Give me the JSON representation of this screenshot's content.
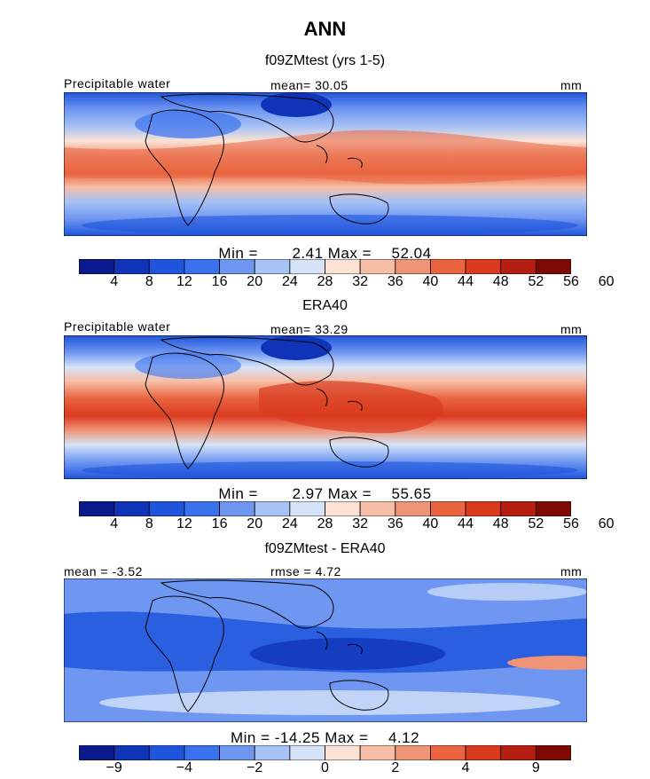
{
  "title": "ANN",
  "panels": [
    {
      "title": "f09ZMtest (yrs 1-5)",
      "left_label": "Precipitable water",
      "center_label": "mean=  30.05",
      "right_label": "mm",
      "min_label": "Min =",
      "min_value": "2.41",
      "max_label": "Max =",
      "max_value": "52.04",
      "colorbar": {
        "colors": [
          "#0a1a8c",
          "#0f34b8",
          "#1f55dc",
          "#3a72ee",
          "#6f97f2",
          "#a7c2f5",
          "#d6e3f8",
          "#fbe2d4",
          "#f6bea6",
          "#f09477",
          "#e9643f",
          "#da3b1f",
          "#b51e10",
          "#7f0a05"
        ],
        "ticks": [
          "4",
          "8",
          "12",
          "16",
          "20",
          "24",
          "28",
          "32",
          "36",
          "40",
          "44",
          "48",
          "52",
          "56",
          "60"
        ]
      }
    },
    {
      "title": "ERA40",
      "left_label": "Precipitable water",
      "center_label": "mean=  33.29",
      "right_label": "mm",
      "min_label": "Min =",
      "min_value": "2.97",
      "max_label": "Max =",
      "max_value": "55.65",
      "colorbar": {
        "colors": [
          "#0a1a8c",
          "#0f34b8",
          "#1f55dc",
          "#3a72ee",
          "#6f97f2",
          "#a7c2f5",
          "#d6e3f8",
          "#fbe2d4",
          "#f6bea6",
          "#f09477",
          "#e9643f",
          "#da3b1f",
          "#b51e10",
          "#7f0a05"
        ],
        "ticks": [
          "4",
          "8",
          "12",
          "16",
          "20",
          "24",
          "28",
          "32",
          "36",
          "40",
          "44",
          "48",
          "52",
          "56",
          "60"
        ]
      }
    },
    {
      "title": "f09ZMtest - ERA40",
      "left_label": "mean =  -3.52",
      "center_label": "rmse =  4.72",
      "right_label": "mm",
      "min_label": "Min =",
      "min_value": "-14.25",
      "max_label": "Max =",
      "max_value": "4.12",
      "colorbar": {
        "colors": [
          "#0a1a8c",
          "#0f34b8",
          "#1f55dc",
          "#3a72ee",
          "#6f97f2",
          "#a7c2f5",
          "#d6e3f8",
          "#fbe2d4",
          "#f6bea6",
          "#f09477",
          "#e9643f",
          "#da3b1f",
          "#b51e10",
          "#7f0a05"
        ],
        "ticks": [
          "-9",
          "",
          "-4",
          "",
          "-2",
          "",
          "0",
          "",
          "2",
          "",
          "4",
          "",
          "9",
          ""
        ]
      }
    }
  ]
}
